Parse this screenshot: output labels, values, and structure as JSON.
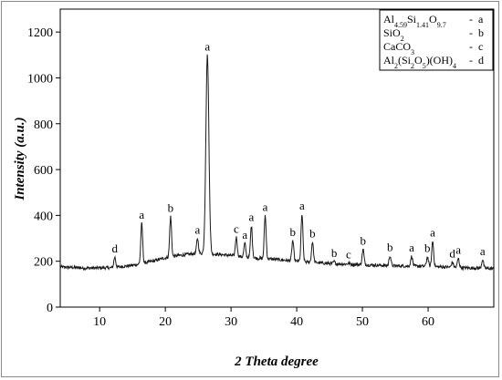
{
  "chart_data": {
    "type": "line",
    "title": "",
    "xlabel": "2 Theta degree",
    "ylabel_text": "Intensity",
    "ylabel_unit": "(a.u.)",
    "xlim": [
      4,
      70
    ],
    "ylim": [
      0,
      1300
    ],
    "xticks": [
      10,
      20,
      30,
      40,
      50,
      60
    ],
    "yticks": [
      0,
      200,
      400,
      600,
      800,
      1000,
      1200
    ],
    "grid": false,
    "legend_position": "top-right",
    "legend": [
      {
        "parts": [
          [
            "Al",
            "n"
          ],
          [
            "4.59",
            "s"
          ],
          [
            "Si",
            "n"
          ],
          [
            "1.41",
            "s"
          ],
          [
            "O",
            "n"
          ],
          [
            "9.7",
            "s"
          ]
        ],
        "sep": "-",
        "code": "a"
      },
      {
        "parts": [
          [
            "SiO",
            "n"
          ],
          [
            "2",
            "s"
          ]
        ],
        "sep": "-",
        "code": "b"
      },
      {
        "parts": [
          [
            "CaCO",
            "n"
          ],
          [
            "3",
            "s"
          ]
        ],
        "sep": "-",
        "code": "c"
      },
      {
        "parts": [
          [
            "Al",
            "n"
          ],
          [
            "2",
            "s"
          ],
          [
            "(Si",
            "n"
          ],
          [
            "2",
            "s"
          ],
          [
            "O",
            "n"
          ],
          [
            "5",
            "s"
          ],
          [
            ")(OH)",
            "n"
          ],
          [
            "4",
            "s"
          ]
        ],
        "sep": "-",
        "code": "d"
      }
    ],
    "baseline": [
      [
        4,
        175
      ],
      [
        8,
        170
      ],
      [
        12,
        172
      ],
      [
        15,
        182
      ],
      [
        18,
        200
      ],
      [
        20,
        215
      ],
      [
        22,
        225
      ],
      [
        24,
        232
      ],
      [
        26,
        235
      ],
      [
        28,
        230
      ],
      [
        30,
        225
      ],
      [
        33,
        215
      ],
      [
        36,
        210
      ],
      [
        40,
        200
      ],
      [
        45,
        190
      ],
      [
        50,
        185
      ],
      [
        55,
        180
      ],
      [
        60,
        178
      ],
      [
        65,
        172
      ],
      [
        70,
        168
      ]
    ],
    "peaks": [
      {
        "x": 12.3,
        "y": 218,
        "label": "d"
      },
      {
        "x": 16.4,
        "y": 365,
        "label": "a"
      },
      {
        "x": 20.8,
        "y": 395,
        "label": "b"
      },
      {
        "x": 24.9,
        "y": 300,
        "label": "a"
      },
      {
        "x": 26.4,
        "y": 1100,
        "label": "a"
      },
      {
        "x": 30.8,
        "y": 305,
        "label": "c"
      },
      {
        "x": 32.1,
        "y": 278,
        "label": "a"
      },
      {
        "x": 33.1,
        "y": 355,
        "label": "a"
      },
      {
        "x": 35.2,
        "y": 400,
        "label": "a"
      },
      {
        "x": 39.4,
        "y": 290,
        "label": "b"
      },
      {
        "x": 40.8,
        "y": 405,
        "label": "a"
      },
      {
        "x": 42.4,
        "y": 285,
        "label": "b"
      },
      {
        "x": 45.7,
        "y": 198,
        "label": "b"
      },
      {
        "x": 47.9,
        "y": 192,
        "label": "c"
      },
      {
        "x": 50.1,
        "y": 252,
        "label": "b"
      },
      {
        "x": 54.2,
        "y": 225,
        "label": "b"
      },
      {
        "x": 57.5,
        "y": 222,
        "label": "a"
      },
      {
        "x": 59.9,
        "y": 220,
        "label": "b"
      },
      {
        "x": 60.7,
        "y": 288,
        "label": "a"
      },
      {
        "x": 63.7,
        "y": 196,
        "label": "d"
      },
      {
        "x": 64.6,
        "y": 212,
        "label": "a"
      },
      {
        "x": 68.3,
        "y": 207,
        "label": "a"
      }
    ]
  }
}
